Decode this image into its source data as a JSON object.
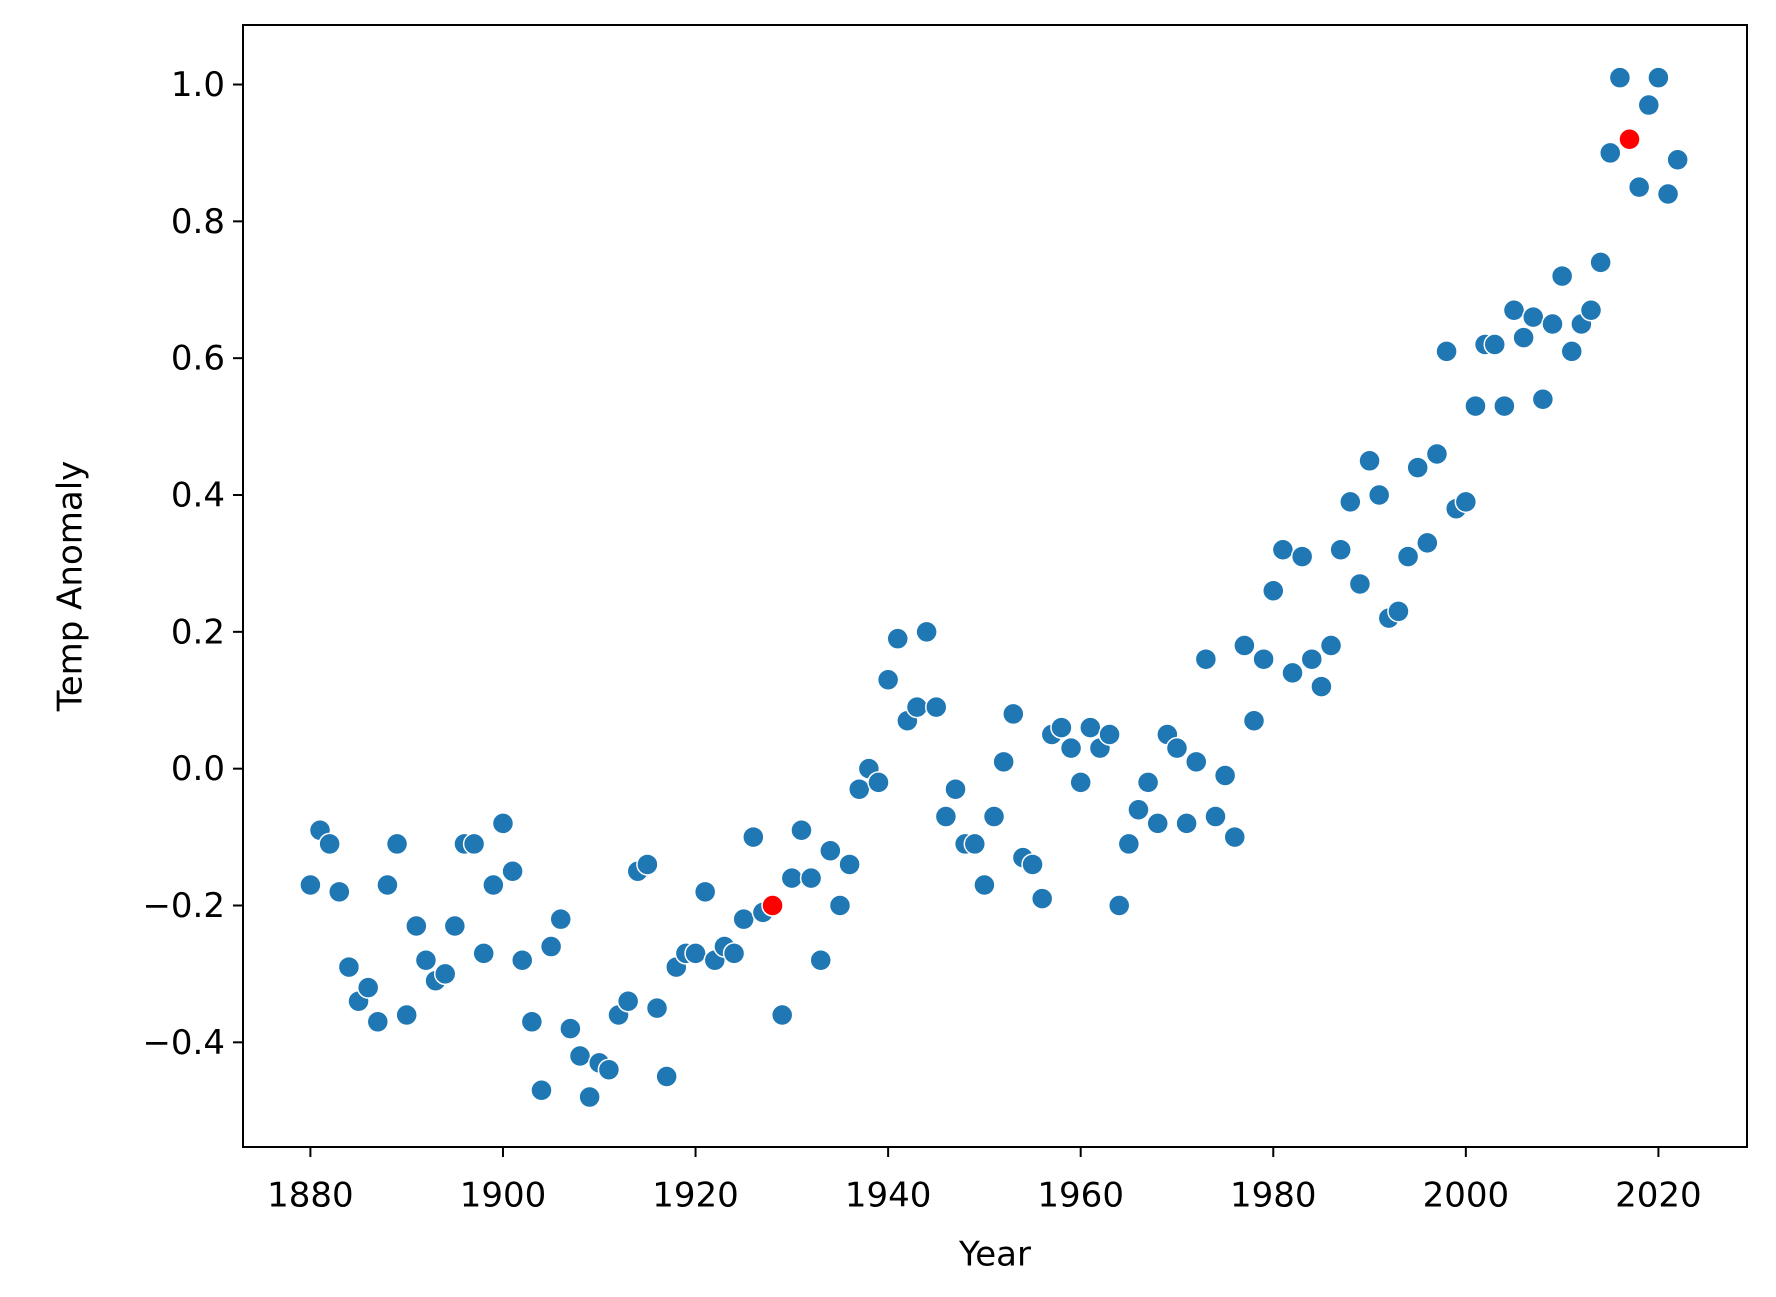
{
  "chart_data": {
    "type": "scatter",
    "x_label": "Year",
    "y_label": "Temp Anomaly",
    "xlim": [
      1873,
      2029.2
    ],
    "ylim": [
      -0.553,
      1.087
    ],
    "xticks": [
      1880,
      1900,
      1920,
      1940,
      1960,
      1980,
      2000,
      2020
    ],
    "yticks": [
      {
        "value": -0.4,
        "label": "−0.4"
      },
      {
        "value": -0.2,
        "label": "−0.2"
      },
      {
        "value": 0,
        "label": "0.0"
      },
      0.2,
      0.4,
      0.6,
      0.8,
      {
        "value": 1,
        "label": "1.0"
      }
    ],
    "grid": false,
    "series": [
      {
        "color": "#1f77b4",
        "x": [
          1880,
          1881,
          1882,
          1883,
          1884,
          1885,
          1886,
          1887,
          1888,
          1889,
          1890,
          1891,
          1892,
          1893,
          1894,
          1895,
          1896,
          1897,
          1898,
          1899,
          1900,
          1901,
          1902,
          1903,
          1904,
          1905,
          1906,
          1907,
          1908,
          1909,
          1910,
          1911,
          1912,
          1913,
          1914,
          1915,
          1916,
          1917,
          1918,
          1919,
          1920,
          1921,
          1922,
          1923,
          1924,
          1925,
          1926,
          1927,
          1928,
          1929,
          1930,
          1931,
          1932,
          1933,
          1934,
          1935,
          1936,
          1937,
          1938,
          1939,
          1940,
          1941,
          1942,
          1943,
          1944,
          1945,
          1946,
          1947,
          1948,
          1949,
          1950,
          1951,
          1952,
          1953,
          1954,
          1955,
          1956,
          1957,
          1958,
          1959,
          1960,
          1961,
          1962,
          1963,
          1964,
          1965,
          1966,
          1967,
          1968,
          1969,
          1970,
          1971,
          1972,
          1973,
          1974,
          1975,
          1976,
          1977,
          1978,
          1979,
          1980,
          1981,
          1982,
          1983,
          1984,
          1985,
          1986,
          1987,
          1988,
          1989,
          1990,
          1991,
          1992,
          1993,
          1994,
          1995,
          1996,
          1997,
          1998,
          1999,
          2000,
          2001,
          2002,
          2003,
          2004,
          2005,
          2006,
          2007,
          2008,
          2009,
          2010,
          2011,
          2012,
          2013,
          2014,
          2015,
          2016,
          2017,
          2018,
          2019,
          2020,
          2021,
          2022
        ],
        "values": [
          -0.17,
          -0.09,
          -0.11,
          -0.18,
          -0.29,
          -0.34,
          -0.32,
          -0.37,
          -0.17,
          -0.11,
          -0.36,
          -0.23,
          -0.28,
          -0.31,
          -0.3,
          -0.23,
          -0.11,
          -0.11,
          -0.27,
          -0.17,
          -0.08,
          -0.15,
          -0.28,
          -0.37,
          -0.47,
          -0.26,
          -0.22,
          -0.38,
          -0.42,
          -0.48,
          -0.43,
          -0.44,
          -0.36,
          -0.34,
          -0.15,
          -0.14,
          -0.35,
          -0.45,
          -0.29,
          -0.27,
          -0.27,
          -0.18,
          -0.28,
          -0.26,
          -0.27,
          -0.22,
          -0.1,
          -0.21,
          -0.2,
          -0.36,
          -0.16,
          -0.09,
          -0.16,
          -0.28,
          -0.12,
          -0.2,
          -0.14,
          -0.03,
          0.0,
          -0.02,
          0.13,
          0.19,
          0.07,
          0.09,
          0.2,
          0.09,
          -0.07,
          -0.03,
          -0.11,
          -0.11,
          -0.17,
          -0.07,
          0.01,
          0.08,
          -0.13,
          -0.14,
          -0.19,
          0.05,
          0.06,
          0.03,
          -0.02,
          0.06,
          0.03,
          0.05,
          -0.2,
          -0.11,
          -0.06,
          -0.02,
          -0.08,
          0.05,
          0.03,
          -0.08,
          0.01,
          0.16,
          -0.07,
          -0.01,
          -0.1,
          0.18,
          0.07,
          0.16,
          0.26,
          0.32,
          0.14,
          0.31,
          0.16,
          0.12,
          0.18,
          0.32,
          0.39,
          0.27,
          0.45,
          0.4,
          0.22,
          0.23,
          0.31,
          0.44,
          0.33,
          0.46,
          0.61,
          0.38,
          0.39,
          0.53,
          0.62,
          0.62,
          0.53,
          0.67,
          0.63,
          0.66,
          0.54,
          0.65,
          0.72,
          0.61,
          0.65,
          0.67,
          0.74,
          0.9,
          1.01,
          0.92,
          0.85,
          0.97,
          1.01,
          0.84,
          0.89
        ]
      },
      {
        "color": "#ff0000",
        "x": [
          1928,
          2017
        ],
        "values": [
          -0.2,
          0.92
        ]
      }
    ]
  }
}
